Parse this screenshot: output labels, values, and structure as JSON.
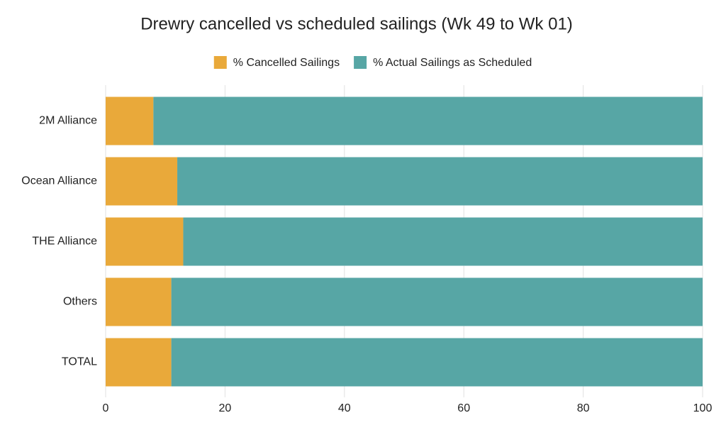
{
  "chart_data": {
    "type": "stacked-bar-horizontal",
    "title": "Drewry cancelled vs scheduled sailings (Wk 49 to Wk 01)",
    "categories": [
      "2M Alliance",
      "Ocean Alliance",
      "THE Alliance",
      "Others",
      "TOTAL"
    ],
    "series": [
      {
        "name": "% Cancelled Sailings",
        "color": "#e9a93a",
        "values": [
          8,
          12,
          13,
          11,
          11
        ]
      },
      {
        "name": "% Actual Sailings as Scheduled",
        "color": "#57a6a5",
        "values": [
          92,
          88,
          87,
          89,
          89
        ]
      }
    ],
    "xlim": [
      0,
      100
    ],
    "xticks": [
      0,
      20,
      40,
      60,
      80,
      100
    ],
    "grid": true,
    "legend": "top"
  }
}
